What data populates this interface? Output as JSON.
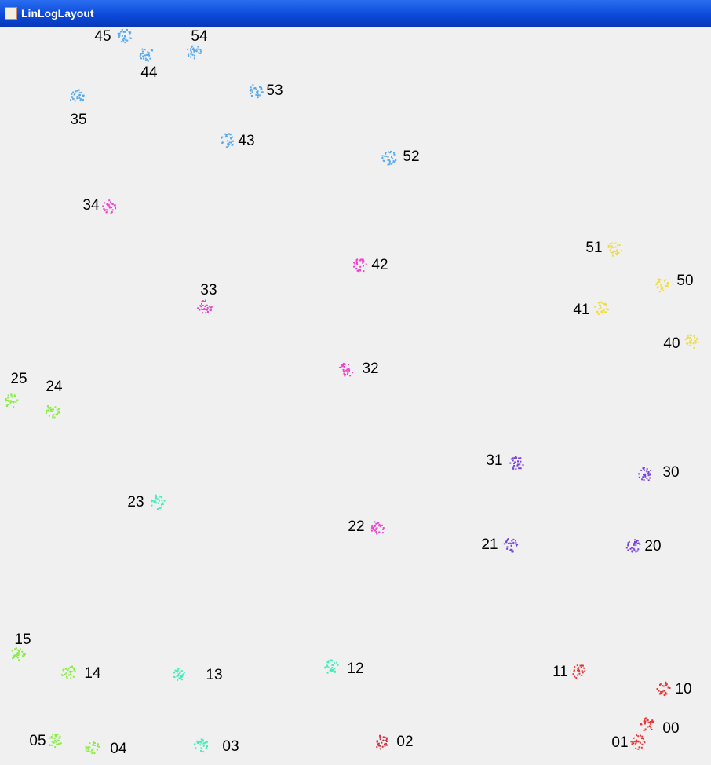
{
  "window": {
    "title": "LinLogLayout"
  },
  "nodes": [
    {
      "label": "45",
      "color": "#55aaee"
    },
    {
      "label": "44",
      "color": "#55aaee"
    },
    {
      "label": "54",
      "color": "#55aaee"
    },
    {
      "label": "53",
      "color": "#55aaee"
    },
    {
      "label": "35",
      "color": "#55aaee"
    },
    {
      "label": "43",
      "color": "#55aaee"
    },
    {
      "label": "52",
      "color": "#55aaee"
    },
    {
      "label": "34",
      "color": "#ee44cc"
    },
    {
      "label": "42",
      "color": "#ee44cc"
    },
    {
      "label": "51",
      "color": "#eedd44"
    },
    {
      "label": "50",
      "color": "#eedd44"
    },
    {
      "label": "33",
      "color": "#ee44cc"
    },
    {
      "label": "41",
      "color": "#eedd44"
    },
    {
      "label": "40",
      "color": "#eedd44"
    },
    {
      "label": "32",
      "color": "#ee44cc"
    },
    {
      "label": "25",
      "color": "#88ee44"
    },
    {
      "label": "24",
      "color": "#88ee44"
    },
    {
      "label": "31",
      "color": "#7744dd"
    },
    {
      "label": "30",
      "color": "#7744dd"
    },
    {
      "label": "23",
      "color": "#44eebb"
    },
    {
      "label": "22",
      "color": "#ee44cc"
    },
    {
      "label": "21",
      "color": "#7744dd"
    },
    {
      "label": "20",
      "color": "#7744dd"
    },
    {
      "label": "15",
      "color": "#88ee44"
    },
    {
      "label": "14",
      "color": "#88ee44"
    },
    {
      "label": "13",
      "color": "#44eebb"
    },
    {
      "label": "12",
      "color": "#44eebb"
    },
    {
      "label": "11",
      "color": "#ee3333"
    },
    {
      "label": "10",
      "color": "#ee3333"
    },
    {
      "label": "00",
      "color": "#ee3333"
    },
    {
      "label": "01",
      "color": "#ee3333"
    },
    {
      "label": "05",
      "color": "#88ee44"
    },
    {
      "label": "04",
      "color": "#88ee44"
    },
    {
      "label": "03",
      "color": "#44eebb"
    },
    {
      "label": "02",
      "color": "#cc3344"
    }
  ]
}
